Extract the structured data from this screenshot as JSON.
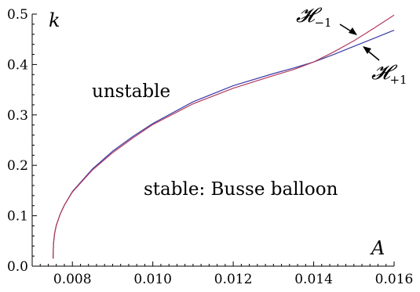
{
  "chart_data": {
    "type": "line",
    "title": "",
    "xlabel": "A",
    "ylabel": "k",
    "xlim": [
      0.007,
      0.016
    ],
    "ylim": [
      0.0,
      0.5
    ],
    "xticks": [
      0.008,
      0.01,
      0.012,
      0.014,
      0.016
    ],
    "xtick_labels": [
      "0.008",
      "0.010",
      "0.012",
      "0.014",
      "0.016"
    ],
    "yticks": [
      0.0,
      0.1,
      0.2,
      0.3,
      0.4,
      0.5
    ],
    "ytick_labels": [
      "0.0",
      "0.1",
      "0.2",
      "0.3",
      "0.4",
      "0.5"
    ],
    "grid": false,
    "series": [
      {
        "name": "H_{+1}",
        "label_main": "𝓗",
        "label_sub": "+1",
        "color": "#3a3aa6",
        "x": [
          0.00752,
          0.00753,
          0.00756,
          0.0076,
          0.0077,
          0.0078,
          0.008,
          0.0085,
          0.009,
          0.0095,
          0.01,
          0.011,
          0.012,
          0.013,
          0.0135,
          0.014,
          0.0145,
          0.015,
          0.0155,
          0.016
        ],
        "y": [
          0.015,
          0.045,
          0.066,
          0.081,
          0.104,
          0.121,
          0.148,
          0.193,
          0.228,
          0.257,
          0.283,
          0.326,
          0.358,
          0.382,
          0.393,
          0.405,
          0.42,
          0.436,
          0.452,
          0.468
        ]
      },
      {
        "name": "H_{-1}",
        "label_main": "𝓗",
        "label_sub": "−1",
        "color": "#b23a5e",
        "x": [
          0.00752,
          0.00753,
          0.00756,
          0.0076,
          0.0077,
          0.0078,
          0.008,
          0.0085,
          0.009,
          0.0095,
          0.01,
          0.011,
          0.012,
          0.013,
          0.0135,
          0.014,
          0.0145,
          0.015,
          0.0155,
          0.016
        ],
        "y": [
          0.015,
          0.045,
          0.066,
          0.081,
          0.104,
          0.121,
          0.147,
          0.191,
          0.225,
          0.254,
          0.281,
          0.322,
          0.353,
          0.378,
          0.39,
          0.405,
          0.425,
          0.447,
          0.472,
          0.498
        ]
      }
    ],
    "annotations": {
      "unstable": "unstable",
      "stable": "stable: Busse balloon"
    }
  }
}
